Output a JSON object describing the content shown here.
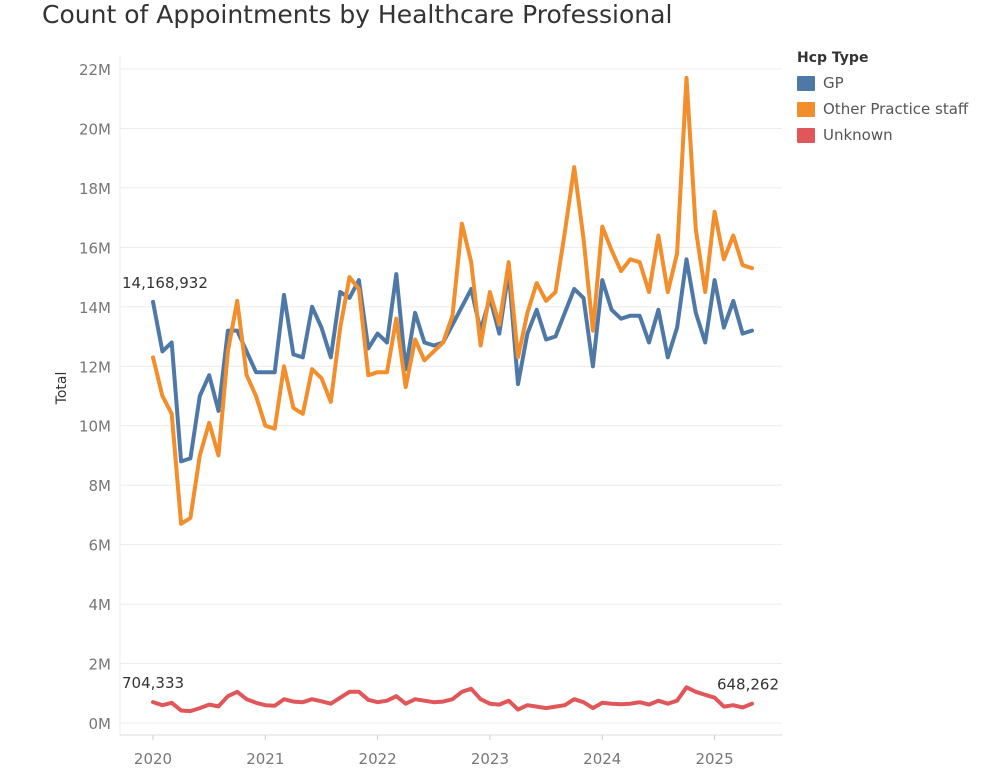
{
  "chart_data": {
    "type": "line",
    "title": "Count of Appointments by Healthcare Professional",
    "xlabel": "",
    "ylabel": "Total",
    "ylim": [
      0,
      23000000
    ],
    "y_ticks": [
      {
        "value": 0,
        "label": "0M"
      },
      {
        "value": 2000000,
        "label": "2M"
      },
      {
        "value": 4000000,
        "label": "4M"
      },
      {
        "value": 6000000,
        "label": "6M"
      },
      {
        "value": 8000000,
        "label": "8M"
      },
      {
        "value": 10000000,
        "label": "10M"
      },
      {
        "value": 12000000,
        "label": "12M"
      },
      {
        "value": 14000000,
        "label": "14M"
      },
      {
        "value": 16000000,
        "label": "16M"
      },
      {
        "value": 18000000,
        "label": "18M"
      },
      {
        "value": 20000000,
        "label": "20M"
      },
      {
        "value": 22000000,
        "label": "22M"
      }
    ],
    "x_ticks": [
      {
        "value": 0,
        "label": "2020"
      },
      {
        "value": 12,
        "label": "2021"
      },
      {
        "value": 24,
        "label": "2022"
      },
      {
        "value": 36,
        "label": "2023"
      },
      {
        "value": 48,
        "label": "2024"
      },
      {
        "value": 60,
        "label": "2025"
      }
    ],
    "x_description": "months since Jan 2020 (0 = Jan 2020 ... 64 = May 2025)",
    "grid": true,
    "legend": {
      "title": "Hcp Type",
      "position": "top-right"
    },
    "series": [
      {
        "name": "GP",
        "color": "#4e79a7",
        "x": [
          0,
          1,
          2,
          3,
          4,
          5,
          6,
          7,
          8,
          9,
          10,
          11,
          12,
          13,
          14,
          15,
          16,
          17,
          18,
          19,
          20,
          21,
          22,
          23,
          24,
          25,
          26,
          27,
          28,
          29,
          30,
          31,
          32,
          33,
          34,
          35,
          36,
          37,
          38,
          39,
          40,
          41,
          42,
          43,
          44,
          45,
          46,
          47,
          48,
          49,
          50,
          51,
          52,
          53,
          54,
          55,
          56,
          57,
          58,
          59,
          60,
          61,
          62,
          63,
          64
        ],
        "values": [
          14168932,
          12500000,
          12800000,
          8800000,
          8900000,
          11000000,
          11700000,
          10500000,
          13200000,
          13200000,
          12500000,
          11800000,
          11800000,
          11800000,
          14400000,
          12400000,
          12300000,
          14000000,
          13300000,
          12300000,
          14500000,
          14300000,
          14900000,
          12600000,
          13100000,
          12800000,
          15100000,
          11900000,
          13800000,
          12800000,
          12700000,
          12800000,
          13400000,
          14000000,
          14600000,
          13200000,
          14300000,
          13100000,
          15200000,
          11400000,
          13100000,
          13900000,
          12900000,
          13000000,
          13800000,
          14600000,
          14300000,
          12000000,
          14900000,
          13900000,
          13600000,
          13700000,
          13700000,
          12800000,
          13900000,
          12300000,
          13300000,
          15600000,
          13800000,
          12800000,
          14900000,
          13300000,
          14200000,
          13100000,
          13200000
        ]
      },
      {
        "name": "Other Practice staff",
        "color": "#f28e2b",
        "x": [
          0,
          1,
          2,
          3,
          4,
          5,
          6,
          7,
          8,
          9,
          10,
          11,
          12,
          13,
          14,
          15,
          16,
          17,
          18,
          19,
          20,
          21,
          22,
          23,
          24,
          25,
          26,
          27,
          28,
          29,
          30,
          31,
          32,
          33,
          34,
          35,
          36,
          37,
          38,
          39,
          40,
          41,
          42,
          43,
          44,
          45,
          46,
          47,
          48,
          49,
          50,
          51,
          52,
          53,
          54,
          55,
          56,
          57,
          58,
          59,
          60,
          61,
          62,
          63,
          64
        ],
        "values": [
          12300000,
          11000000,
          10400000,
          6700000,
          6900000,
          9000000,
          10100000,
          9000000,
          12500000,
          14200000,
          11700000,
          11000000,
          10000000,
          9900000,
          12000000,
          10600000,
          10400000,
          11900000,
          11600000,
          10800000,
          13300000,
          15000000,
          14600000,
          11700000,
          11800000,
          11800000,
          13600000,
          11300000,
          12900000,
          12200000,
          12500000,
          12800000,
          13700000,
          16800000,
          15500000,
          12700000,
          14500000,
          13400000,
          15500000,
          12300000,
          13800000,
          14800000,
          14200000,
          14500000,
          16500000,
          18700000,
          16300000,
          13200000,
          16700000,
          15900000,
          15200000,
          15600000,
          15500000,
          14500000,
          16400000,
          14500000,
          15800000,
          21700000,
          16600000,
          14500000,
          17200000,
          15600000,
          16400000,
          15400000,
          15300000
        ]
      },
      {
        "name": "Unknown",
        "color": "#e15759",
        "x": [
          0,
          1,
          2,
          3,
          4,
          5,
          6,
          7,
          8,
          9,
          10,
          11,
          12,
          13,
          14,
          15,
          16,
          17,
          18,
          19,
          20,
          21,
          22,
          23,
          24,
          25,
          26,
          27,
          28,
          29,
          30,
          31,
          32,
          33,
          34,
          35,
          36,
          37,
          38,
          39,
          40,
          41,
          42,
          43,
          44,
          45,
          46,
          47,
          48,
          49,
          50,
          51,
          52,
          53,
          54,
          55,
          56,
          57,
          58,
          59,
          60,
          61,
          62,
          63,
          64
        ],
        "values": [
          704333,
          600000,
          680000,
          420000,
          400000,
          500000,
          620000,
          560000,
          900000,
          1050000,
          800000,
          680000,
          600000,
          580000,
          800000,
          720000,
          700000,
          800000,
          730000,
          650000,
          850000,
          1050000,
          1050000,
          780000,
          700000,
          750000,
          900000,
          650000,
          800000,
          750000,
          700000,
          720000,
          800000,
          1050000,
          1150000,
          800000,
          650000,
          620000,
          750000,
          450000,
          600000,
          550000,
          500000,
          550000,
          600000,
          800000,
          700000,
          500000,
          680000,
          650000,
          630000,
          650000,
          700000,
          620000,
          750000,
          650000,
          750000,
          1200000,
          1050000,
          950000,
          850000,
          550000,
          600000,
          520000,
          648262
        ]
      }
    ],
    "annotations": [
      {
        "series": "GP",
        "x": 0,
        "label": "14,168,932"
      },
      {
        "series": "Unknown",
        "x": 0,
        "label": "704,333"
      },
      {
        "series": "Unknown",
        "x": 64,
        "label": "648,262"
      }
    ]
  }
}
